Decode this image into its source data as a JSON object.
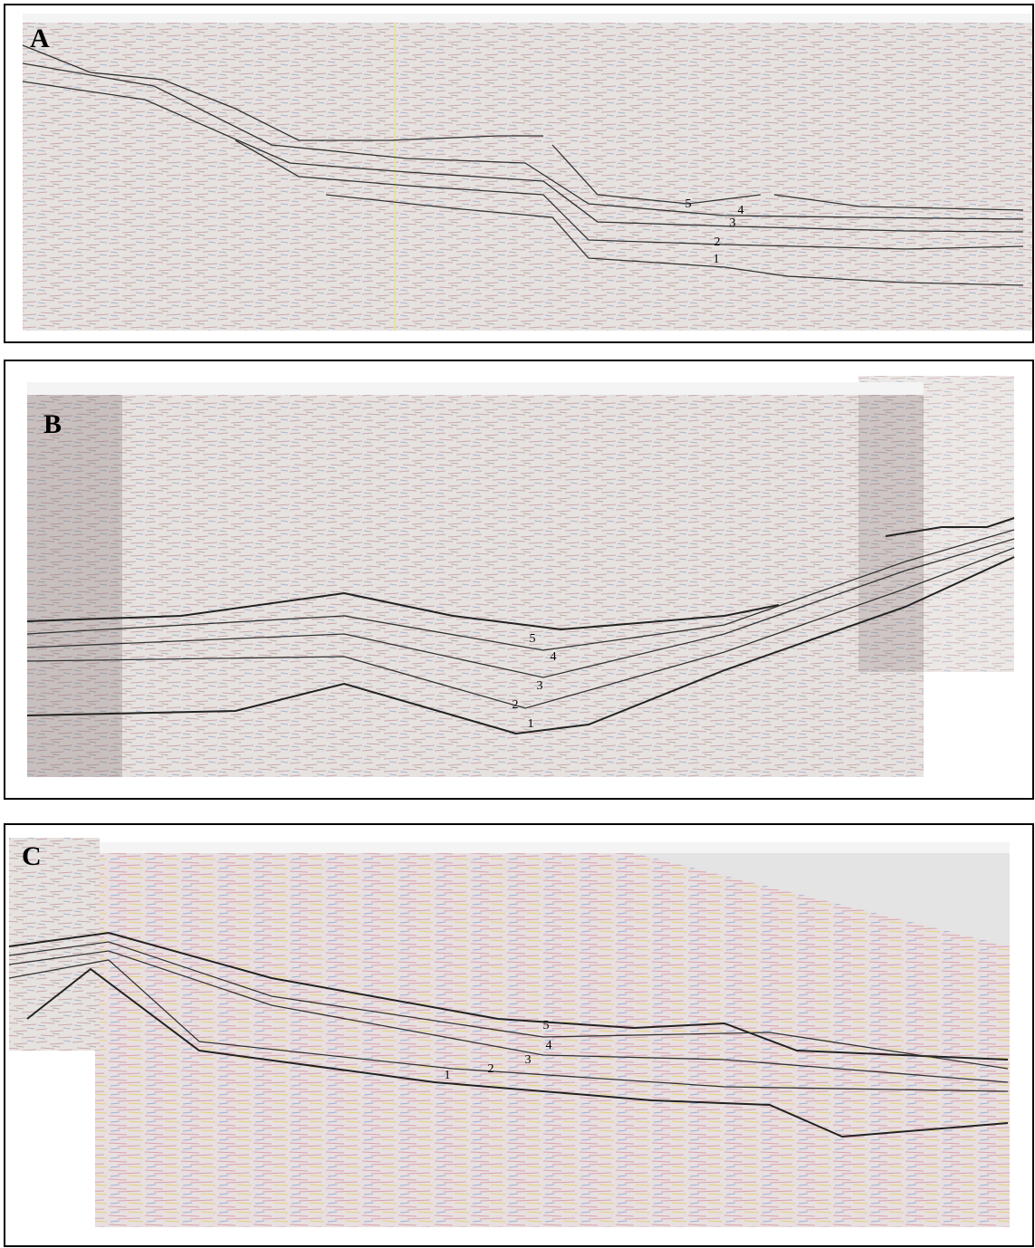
{
  "panels": [
    {
      "label": "A",
      "horizons": [
        "5",
        "4",
        "3",
        "2",
        "1"
      ]
    },
    {
      "label": "B",
      "horizons": [
        "5",
        "4",
        "3",
        "2",
        "1"
      ]
    },
    {
      "label": "C",
      "horizons": [
        "5",
        "4",
        "3",
        "2",
        "1"
      ]
    }
  ]
}
